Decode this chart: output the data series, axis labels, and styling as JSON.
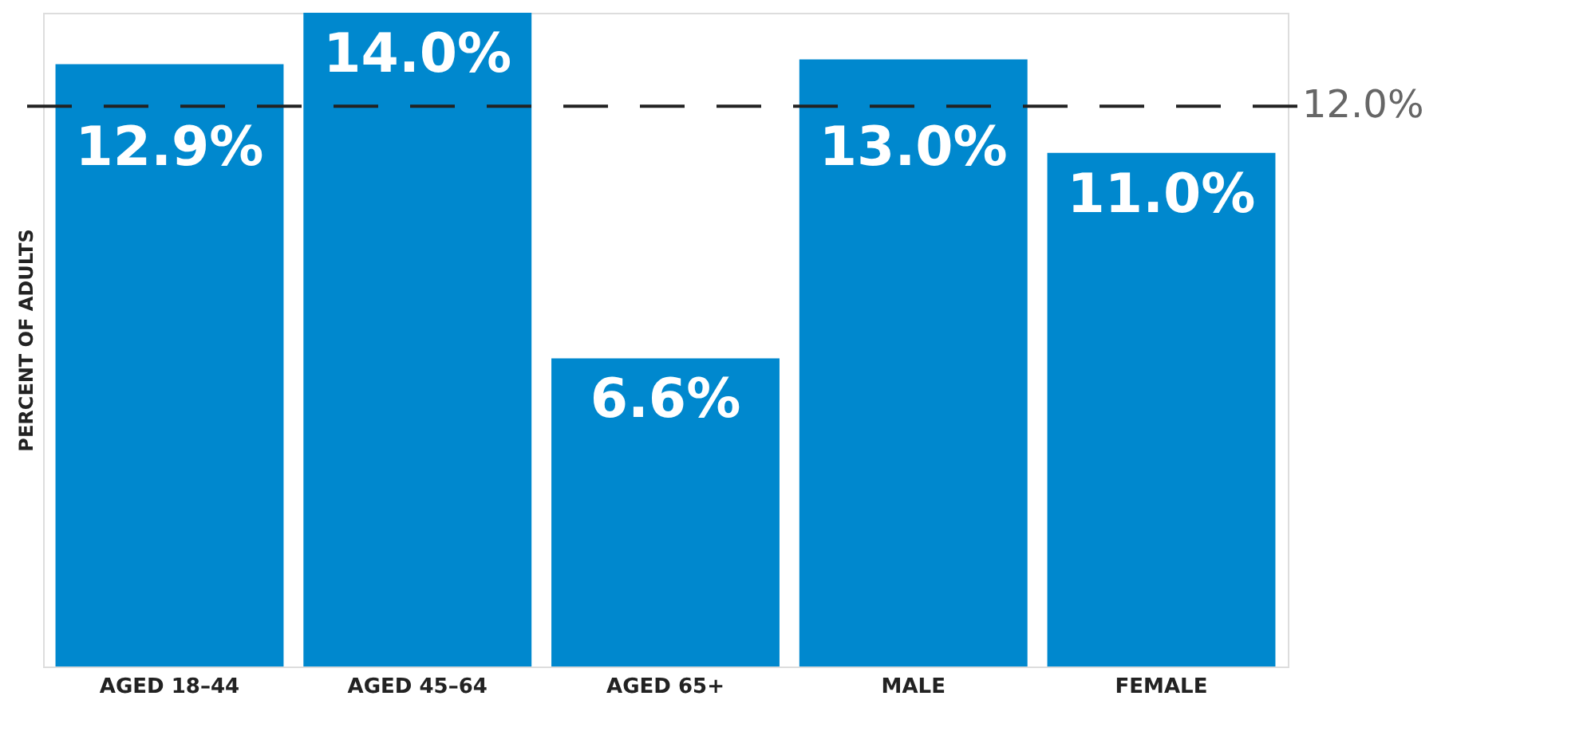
{
  "chart_data": {
    "type": "bar",
    "ylabel": "PERCENT OF ADULTS",
    "categories": [
      "AGED 18–44",
      "AGED 45–64",
      "AGED 65+",
      "MALE",
      "FEMALE"
    ],
    "values": [
      12.9,
      14.0,
      6.6,
      13.0,
      11.0
    ],
    "value_labels": [
      "12.9%",
      "14.0%",
      "6.6%",
      "13.0%",
      "11.0%"
    ],
    "color": "#0088ce",
    "ylim": [
      0,
      14
    ],
    "ref_lines": [
      {
        "axis": "y",
        "value": 12.0,
        "label": "12.0%",
        "color": "#222222",
        "line_style": "dashed"
      }
    ],
    "grid": false
  }
}
